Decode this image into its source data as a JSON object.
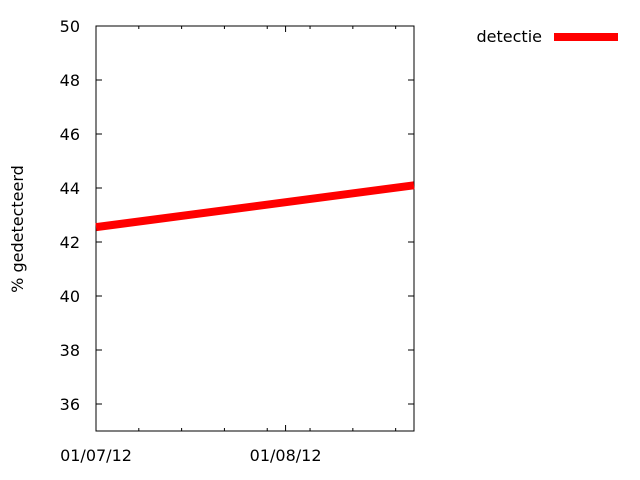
{
  "chart_data": {
    "type": "line",
    "title": "",
    "xlabel": "",
    "ylabel": "% gedetecteerd",
    "x_tick_labels": [
      "01/07/12",
      "01/08/12"
    ],
    "x_tick_dates": [
      "2012-07-01",
      "2012-08-01"
    ],
    "xlim": [
      "2012-07-01",
      "2012-08-22"
    ],
    "ylim": [
      35,
      50
    ],
    "y_ticks": [
      36,
      38,
      40,
      42,
      44,
      46,
      48,
      50
    ],
    "grid": false,
    "legend_position": "top-right",
    "series": [
      {
        "name": "detectie",
        "color": "#ff0000",
        "points": [
          {
            "x": "2012-07-01",
            "y": 42.55
          },
          {
            "x": "2012-08-22",
            "y": 44.1
          }
        ]
      }
    ]
  }
}
